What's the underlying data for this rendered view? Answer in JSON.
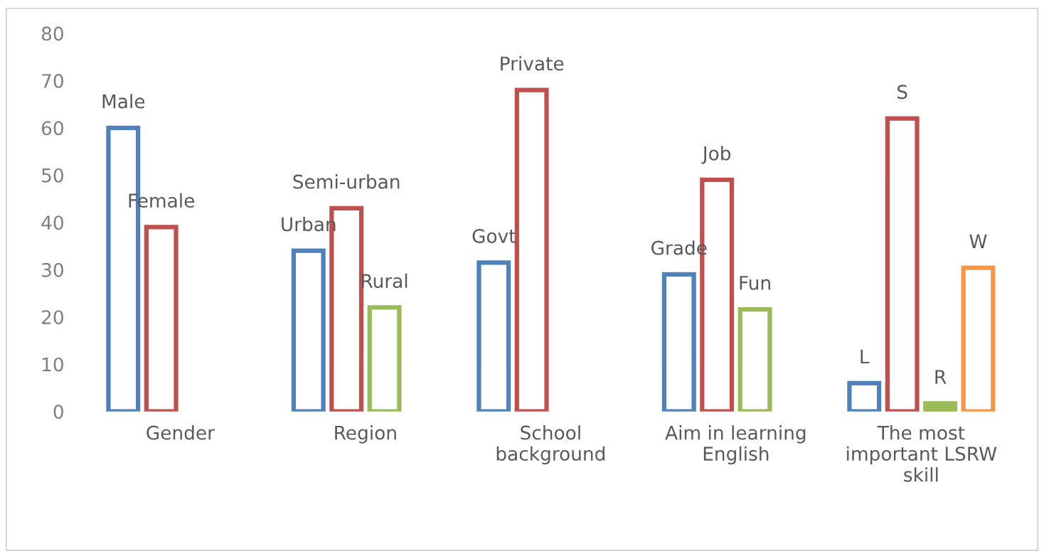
{
  "chart_data": {
    "type": "bar",
    "categories": [
      "Gender",
      "Region",
      "School\nbackground",
      "Aim in learning\nEnglish",
      "The most\nimportant LSRW\nskill"
    ],
    "series": [
      {
        "color": "#4f81bd",
        "values": [
          60,
          34,
          31.5,
          29,
          6
        ],
        "value_labels": [
          "Male",
          "Urban",
          "Govt",
          "Grade",
          "L"
        ]
      },
      {
        "color": "#c0504d",
        "values": [
          39,
          43,
          68,
          49,
          62
        ],
        "value_labels": [
          "Female",
          "Semi-urban",
          "Private",
          "Job",
          "S"
        ]
      },
      {
        "color": "#9bbb59",
        "values": [
          null,
          22,
          null,
          21.6,
          1.7
        ],
        "value_labels": [
          null,
          "Rural",
          null,
          "Fun",
          "R"
        ]
      },
      {
        "color": "#f79646",
        "values": [
          null,
          null,
          null,
          null,
          30.4
        ],
        "value_labels": [
          null,
          null,
          null,
          null,
          "W"
        ]
      }
    ],
    "ylim": [
      0,
      80
    ],
    "yticks": [
      0,
      10,
      20,
      30,
      40,
      50,
      60,
      70,
      80
    ],
    "grid": false,
    "legend": false
  }
}
